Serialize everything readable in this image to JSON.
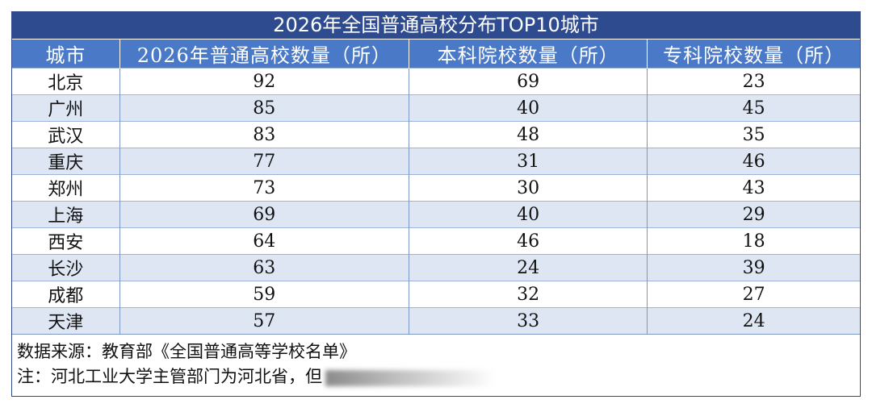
{
  "title": "2026年全国普通高校分布TOP10城市",
  "headers": [
    "城市",
    "2026年普通高校数量（所）",
    "本科院校数量（所）",
    "专科院校数量（所）"
  ],
  "rows": [
    {
      "city": "北京",
      "total": "92",
      "undergrad": "69",
      "college": "23"
    },
    {
      "city": "广州",
      "total": "85",
      "undergrad": "40",
      "college": "45"
    },
    {
      "city": "武汉",
      "total": "83",
      "undergrad": "48",
      "college": "35"
    },
    {
      "city": "重庆",
      "total": "77",
      "undergrad": "31",
      "college": "46"
    },
    {
      "city": "郑州",
      "total": "73",
      "undergrad": "30",
      "college": "43"
    },
    {
      "city": "上海",
      "total": "69",
      "undergrad": "40",
      "college": "29"
    },
    {
      "city": "西安",
      "total": "64",
      "undergrad": "46",
      "college": "18"
    },
    {
      "city": "长沙",
      "total": "63",
      "undergrad": "24",
      "college": "39"
    },
    {
      "city": "成都",
      "total": "59",
      "undergrad": "32",
      "college": "27"
    },
    {
      "city": "天津",
      "total": "57",
      "undergrad": "33",
      "college": "24"
    }
  ],
  "notes": {
    "source": "数据来源：教育部《全国普通高等学校名单》",
    "remark": "注：河北工业大学主管部门为河北省，但"
  },
  "colors": {
    "title_bg": "#2e4b8f",
    "header_bg": "#4a79c8",
    "alt_row_bg": "#dfe6f3"
  }
}
